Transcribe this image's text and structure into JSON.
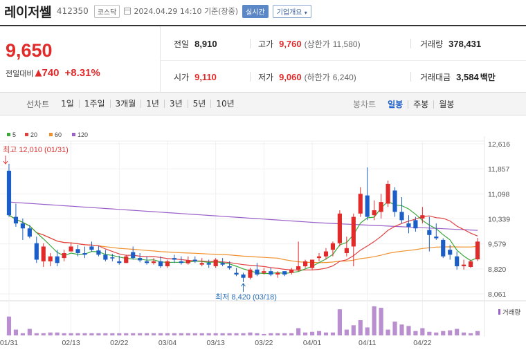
{
  "header": {
    "name": "레이저쎌",
    "code": "412350",
    "market": "코스닥",
    "timestamp": "2024.04.29 14:10 기준(장중)",
    "realtime_label": "실시간",
    "company_label": "기업개요"
  },
  "price": {
    "current": "9,650",
    "change_label": "전일대비",
    "change": "740",
    "change_pct": "+8.31%"
  },
  "stats": {
    "prev_close_label": "전일",
    "prev_close": "8,910",
    "high_label": "고가",
    "high": "9,760",
    "upper_limit_label": "(상한가",
    "upper_limit": "11,580)",
    "volume_label": "거래량",
    "volume": "378,431",
    "open_label": "시가",
    "open": "9,110",
    "low_label": "저가",
    "low": "9,060",
    "lower_limit_label": "(하한가",
    "lower_limit": "6,240)",
    "amount_label": "거래대금",
    "amount": "3,584",
    "amount_unit": "백만"
  },
  "tabs": {
    "line_label": "선차트",
    "line_items": [
      "1일",
      "1주일",
      "3개월",
      "1년",
      "3년",
      "5년",
      "10년"
    ],
    "candle_label": "봉차트",
    "candle_items": [
      "일봉",
      "주봉",
      "월봉"
    ],
    "active_candle": "일봉"
  },
  "colors": {
    "up": "#e12a2a",
    "down": "#1b5ec7",
    "ma5": "#3aa83a",
    "ma20": "#e04040",
    "ma60": "#f0902a",
    "ma120": "#9a5fc8"
  },
  "chart_data": {
    "type": "candlestick",
    "legend": [
      "5",
      "20",
      "60",
      "120"
    ],
    "y_ticks": [
      "12,616",
      "11,857",
      "11,098",
      "10,339",
      "9,579",
      "8,820",
      "8,061"
    ],
    "ylim": [
      8061,
      12616
    ],
    "x_ticks": [
      "01/31",
      "02/13",
      "02/22",
      "03/04",
      "03/13",
      "03/22",
      "04/01",
      "04/11",
      "04/22"
    ],
    "max_label": "최고 12,010 (01/31)",
    "min_label": "최저 8,420 (03/18)",
    "volume_label": "거래량",
    "candles": [
      [
        11800,
        12010,
        10400,
        10450
      ],
      [
        10400,
        10800,
        10100,
        10200
      ],
      [
        10200,
        10350,
        9700,
        10050
      ],
      [
        10050,
        10150,
        9750,
        9800
      ],
      [
        9600,
        9800,
        9000,
        9100
      ],
      [
        9050,
        9600,
        8880,
        9500
      ],
      [
        9050,
        9300,
        8900,
        9200
      ],
      [
        9200,
        9400,
        8900,
        9000
      ],
      [
        9150,
        9400,
        9050,
        9300
      ],
      [
        9350,
        9600,
        9350,
        9500
      ],
      [
        9420,
        9550,
        9200,
        9300
      ],
      [
        9300,
        9500,
        9150,
        9250
      ],
      [
        9500,
        9650,
        9350,
        9400
      ],
      [
        9380,
        9520,
        9200,
        9250
      ],
      [
        9250,
        9400,
        9050,
        9100
      ],
      [
        9170,
        9280,
        9050,
        9150
      ],
      [
        9050,
        9220,
        8950,
        9000
      ],
      [
        9000,
        9250,
        9000,
        9200
      ],
      [
        9330,
        9500,
        9100,
        9150
      ],
      [
        9150,
        9300,
        9020,
        9080
      ],
      [
        9050,
        9200,
        8950,
        9000
      ],
      [
        9000,
        9150,
        8950,
        9050
      ],
      [
        9050,
        9200,
        8850,
        8900
      ],
      [
        8900,
        9100,
        8850,
        9050
      ],
      [
        9150,
        9250,
        9000,
        9100
      ],
      [
        9050,
        9200,
        8950,
        9000
      ],
      [
        8990,
        9200,
        8950,
        9080
      ],
      [
        9100,
        9200,
        9000,
        9050
      ],
      [
        8950,
        9150,
        8900,
        9000
      ],
      [
        9000,
        9100,
        8850,
        8950
      ],
      [
        8900,
        9150,
        8850,
        9100
      ],
      [
        9000,
        9150,
        8900,
        8950
      ],
      [
        8900,
        9050,
        8800,
        8850
      ],
      [
        8700,
        8850,
        8600,
        8650
      ],
      [
        8650,
        8700,
        8420,
        8550
      ],
      [
        8550,
        8850,
        8500,
        8800
      ],
      [
        8800,
        9000,
        8600,
        8650
      ],
      [
        8700,
        8850,
        8650,
        8750
      ],
      [
        8750,
        8850,
        8600,
        8650
      ],
      [
        8650,
        8750,
        8550,
        8700
      ],
      [
        8750,
        8750,
        8600,
        8650
      ],
      [
        8700,
        8850,
        8650,
        8800
      ],
      [
        8800,
        9650,
        8750,
        8900
      ],
      [
        8900,
        9100,
        8850,
        9050
      ],
      [
        8850,
        9100,
        8800,
        9100
      ],
      [
        9150,
        9300,
        9050,
        9200
      ],
      [
        9200,
        9450,
        9100,
        9350
      ],
      [
        9400,
        9650,
        9200,
        9600
      ],
      [
        9600,
        10600,
        9500,
        10500
      ],
      [
        9300,
        9800,
        9200,
        9450
      ],
      [
        9500,
        10500,
        8900,
        10400
      ],
      [
        10500,
        11300,
        10400,
        11100
      ],
      [
        11050,
        11900,
        10300,
        10400
      ],
      [
        10450,
        10900,
        10300,
        10600
      ],
      [
        10550,
        11100,
        10350,
        10850
      ],
      [
        10800,
        11500,
        10700,
        11400
      ],
      [
        11200,
        11300,
        10400,
        10550
      ],
      [
        10550,
        11000,
        10200,
        10300
      ],
      [
        10200,
        10450,
        9900,
        10100
      ],
      [
        10300,
        10400,
        9950,
        10050
      ],
      [
        10350,
        10700,
        10200,
        10450
      ],
      [
        10000,
        10400,
        9350,
        9850
      ],
      [
        9800,
        10200,
        9700,
        9750
      ],
      [
        9700,
        9750,
        9150,
        9200
      ],
      [
        9400,
        9550,
        9100,
        9250
      ],
      [
        9200,
        9350,
        8800,
        8900
      ],
      [
        8900,
        9100,
        8800,
        8950
      ],
      [
        8880,
        9100,
        8850,
        9050
      ],
      [
        9110,
        9760,
        9060,
        9650
      ]
    ],
    "volumes": [
      26,
      8,
      3,
      9,
      3,
      3,
      4,
      4,
      3,
      3,
      3,
      3,
      3,
      3,
      3,
      3,
      3,
      3,
      3,
      3,
      3,
      3,
      3,
      3,
      3,
      3,
      3,
      3,
      3,
      3,
      3,
      3,
      3,
      3,
      3,
      4,
      3,
      2,
      3,
      3,
      3,
      3,
      10,
      4,
      5,
      6,
      4,
      4,
      36,
      8,
      14,
      21,
      11,
      40,
      38,
      8,
      19,
      15,
      13,
      6,
      10,
      5,
      4,
      6,
      7,
      9,
      4,
      3,
      6
    ]
  }
}
